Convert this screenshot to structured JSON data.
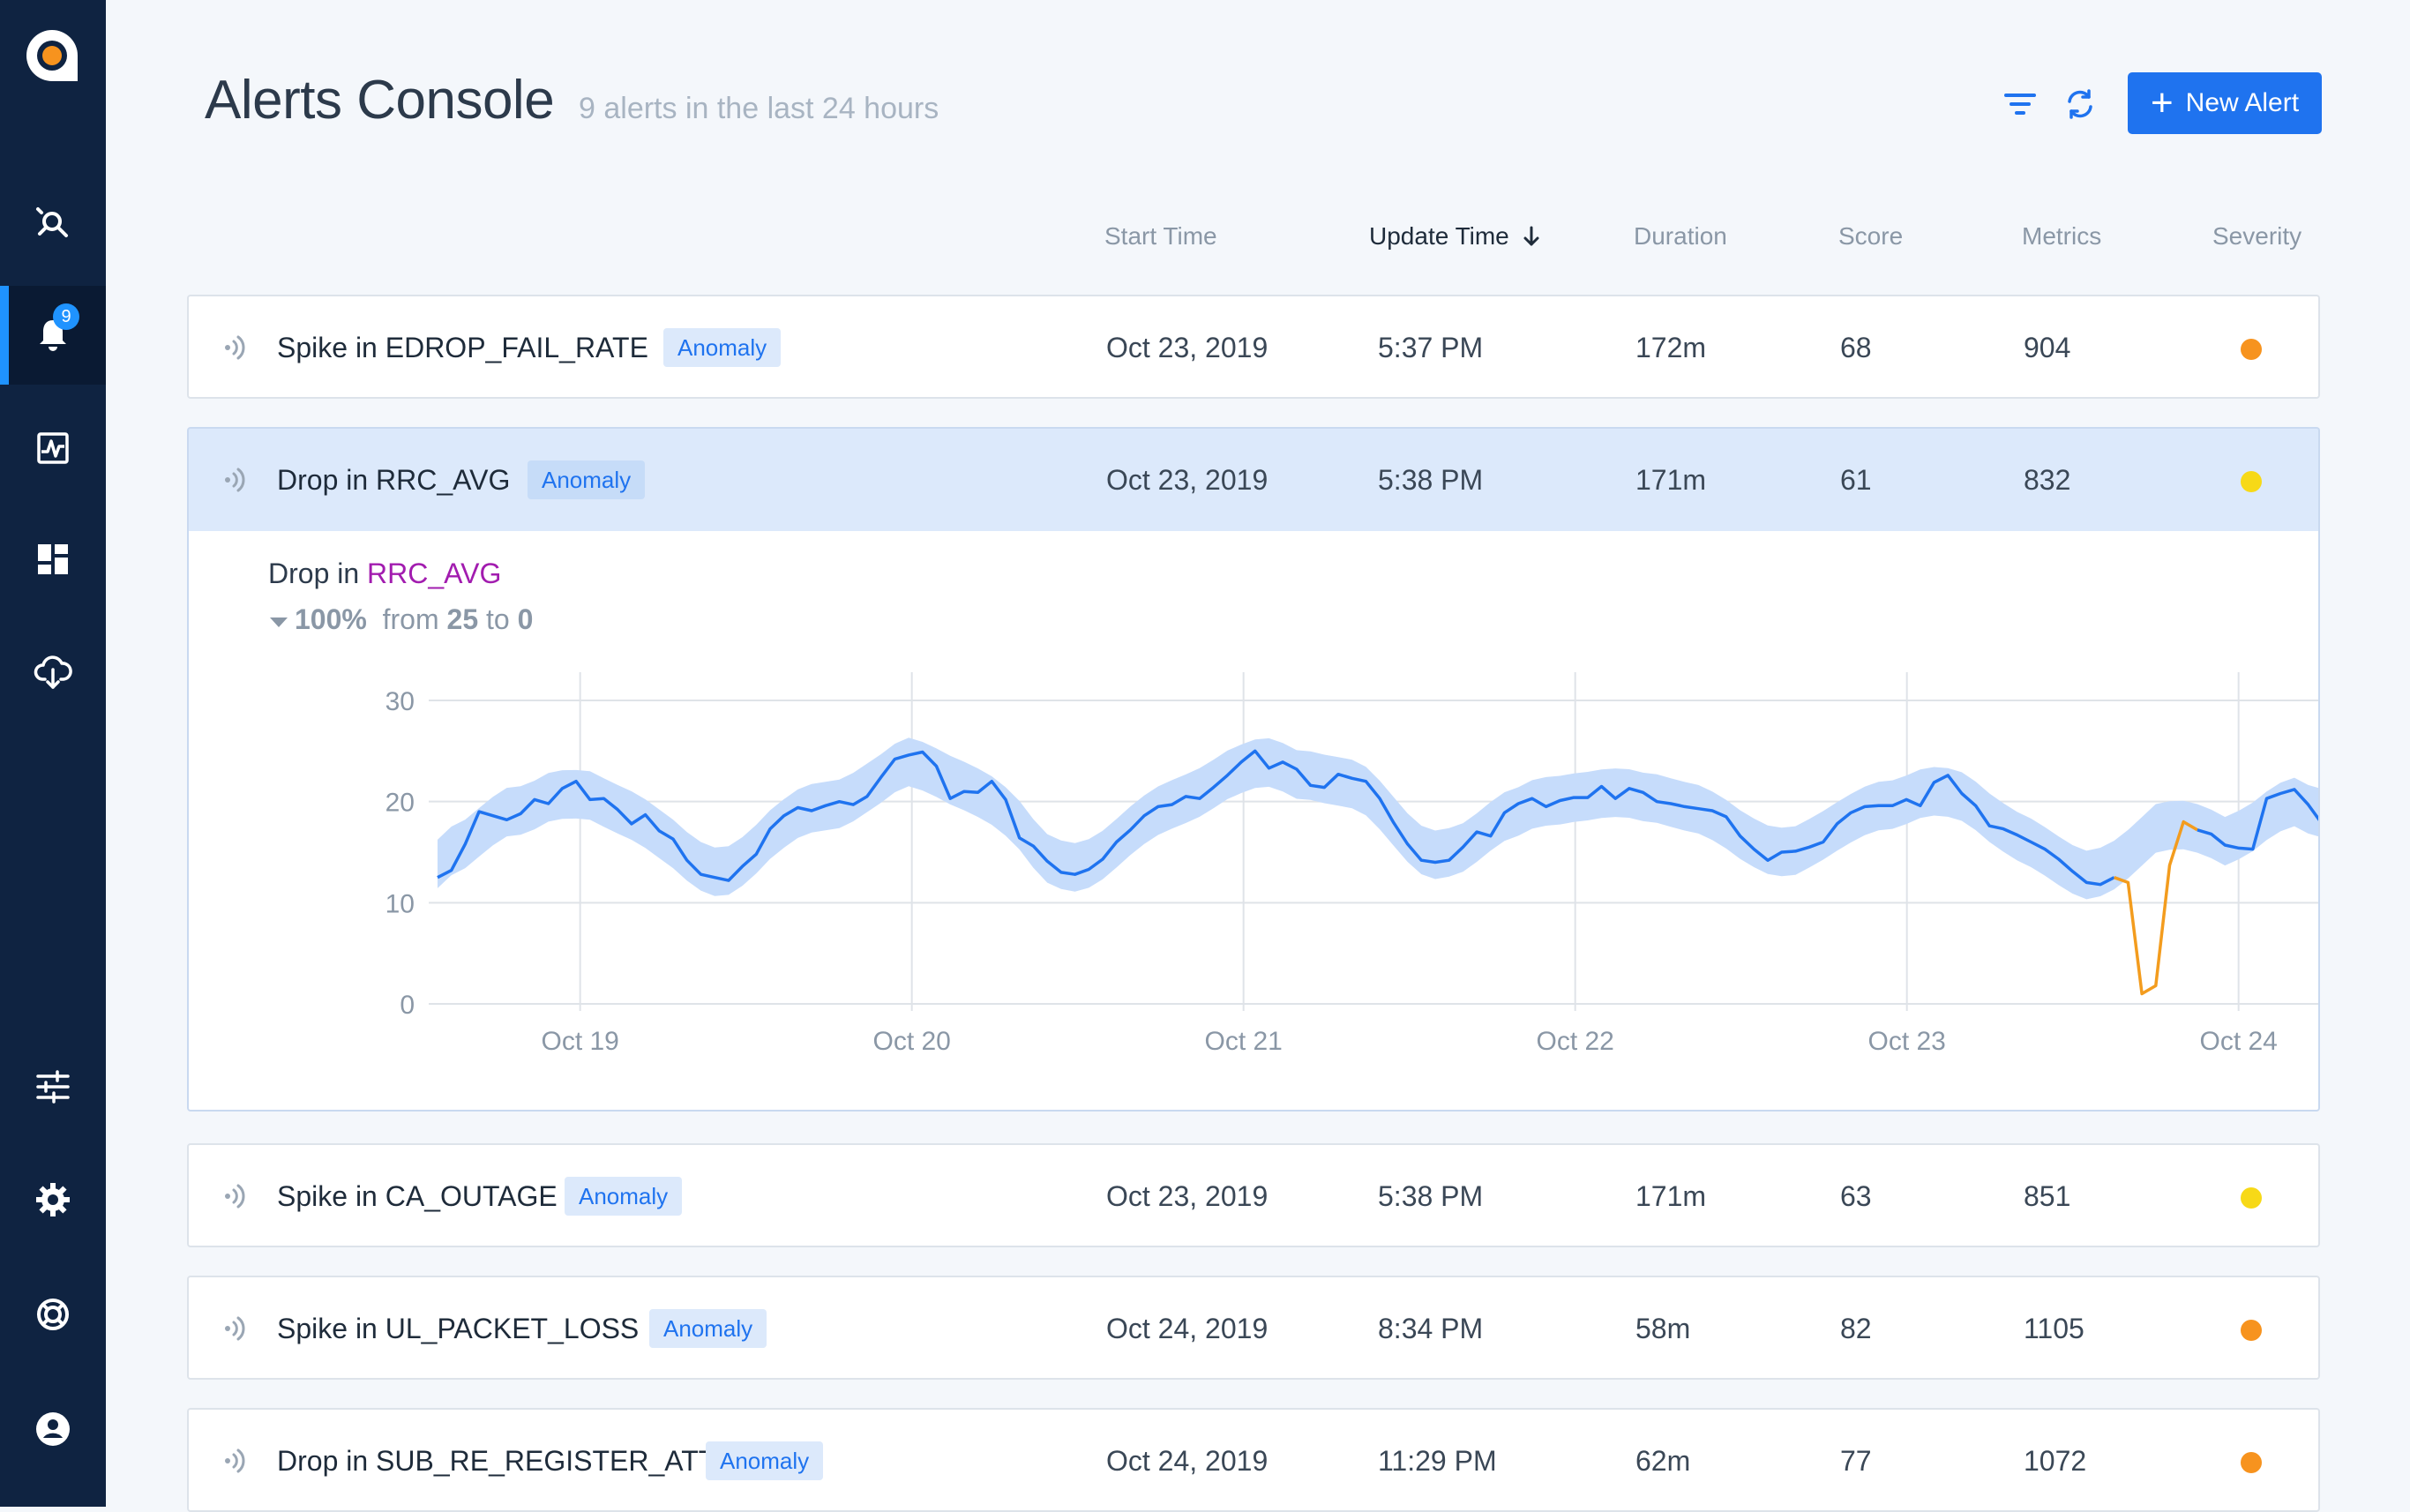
{
  "sidebar": {
    "badge_count": "9",
    "items": [
      {
        "name": "explore",
        "icon": "explore-icon"
      },
      {
        "name": "alerts",
        "icon": "bell-icon",
        "active": true
      },
      {
        "name": "metrics",
        "icon": "activity-icon"
      },
      {
        "name": "dashboards",
        "icon": "dashboard-icon"
      },
      {
        "name": "data-upload",
        "icon": "cloud-upload-icon"
      },
      {
        "name": "preferences",
        "icon": "sliders-icon"
      },
      {
        "name": "settings",
        "icon": "gear-icon"
      },
      {
        "name": "help",
        "icon": "lifebuoy-icon"
      },
      {
        "name": "account",
        "icon": "user-icon"
      }
    ]
  },
  "header": {
    "title": "Alerts Console",
    "subtitle": "9 alerts in the last 24 hours",
    "new_alert_label": "New Alert"
  },
  "columns": {
    "start_time": "Start Time",
    "update_time": "Update Time",
    "duration": "Duration",
    "score": "Score",
    "metrics": "Metrics",
    "severity": "Severity"
  },
  "alerts": [
    {
      "name": "Spike in EDROP_FAIL_RATE",
      "tag": "Anomaly",
      "start": "Oct 23, 2019",
      "update": "5:37 PM",
      "duration": "172m",
      "score": "68",
      "metrics": "904",
      "severity_color": "#f7931e"
    },
    {
      "name": "Drop in RRC_AVG",
      "tag": "Anomaly",
      "start": "Oct 23, 2019",
      "update": "5:38 PM",
      "duration": "171m",
      "score": "61",
      "metrics": "832",
      "severity_color": "#f7d917"
    },
    {
      "name": "Spike in CA_OUTAGE",
      "tag": "Anomaly",
      "start": "Oct 23, 2019",
      "update": "5:38 PM",
      "duration": "171m",
      "score": "63",
      "metrics": "851",
      "severity_color": "#f7d917"
    },
    {
      "name": "Spike in UL_PACKET_LOSS",
      "tag": "Anomaly",
      "start": "Oct 24, 2019",
      "update": "8:34 PM",
      "duration": "58m",
      "score": "82",
      "metrics": "1105",
      "severity_color": "#f7931e"
    },
    {
      "name": "Drop in SUB_RE_REGISTER_ATT",
      "tag": "Anomaly",
      "start": "Oct 24, 2019",
      "update": "11:29 PM",
      "duration": "62m",
      "score": "77",
      "metrics": "1072",
      "severity_color": "#f7931e"
    }
  ],
  "detail": {
    "prefix": "Drop in",
    "metric": "RRC_AVG",
    "change_pct": "100%",
    "from_label": "from",
    "from_value": "25",
    "to_label": "to",
    "to_value": "0"
  },
  "chart_data": {
    "type": "line",
    "title": "",
    "xlabel": "",
    "ylabel": "",
    "ylim": [
      0,
      30
    ],
    "yticks": [
      "30",
      "20",
      "10",
      "0"
    ],
    "xticks": [
      "Oct 19",
      "Oct 20",
      "Oct 21",
      "Oct 22",
      "Oct 23",
      "Oct 24"
    ],
    "x_start_tick_offset": -0.43,
    "x_end_tick_offset": 5.3,
    "colors": {
      "line": "#1f73ef",
      "band": "#c6dcfb",
      "anomaly": "#f39c1e",
      "grid": "#dfe3e8"
    },
    "series": [
      {
        "name": "",
        "values": [
          12.5,
          13.2,
          15.8,
          19.0,
          18.6,
          18.2,
          18.8,
          20.2,
          19.8,
          21.3,
          22.0,
          20.2,
          20.3,
          19.2,
          17.8,
          18.7,
          17.1,
          16.3,
          14.2,
          12.8,
          12.5,
          12.2,
          13.6,
          14.8,
          17.3,
          18.6,
          19.4,
          19.1,
          19.6,
          20.0,
          19.7,
          20.5,
          22.4,
          24.2,
          24.6,
          24.9,
          23.5,
          20.3,
          21.0,
          20.9,
          22.0,
          20.2,
          16.4,
          15.6,
          14.1,
          13.0,
          12.8,
          13.3,
          14.3,
          16.0,
          17.2,
          18.6,
          19.5,
          19.7,
          20.5,
          20.3,
          21.4,
          22.6,
          23.9,
          25.0,
          23.3,
          23.9,
          23.2,
          21.6,
          21.4,
          22.7,
          22.3,
          22.0,
          20.3,
          17.9,
          15.8,
          14.2,
          14.0,
          14.2,
          15.5,
          17.0,
          16.6,
          18.9,
          19.8,
          20.3,
          19.5,
          20.1,
          20.4,
          20.4,
          21.5,
          20.3,
          21.3,
          20.9,
          20.0,
          19.8,
          19.5,
          19.3,
          19.1,
          18.5,
          16.6,
          15.3,
          14.2,
          15.0,
          15.1,
          15.5,
          16.0,
          17.8,
          18.9,
          19.5,
          19.6,
          19.6,
          20.2,
          19.6,
          21.9,
          22.6,
          20.8,
          19.6,
          17.6,
          17.3,
          16.7,
          16.0,
          15.3,
          14.3,
          13.1,
          12.0,
          11.8,
          12.5,
          12.0,
          1.0,
          1.8,
          13.7,
          18.0,
          17.2,
          16.8,
          15.7,
          15.4,
          15.3,
          20.3,
          20.8,
          21.2,
          19.7,
          17.8,
          16.7
        ]
      }
    ],
    "anomaly_range": [
      122,
      126
    ]
  }
}
